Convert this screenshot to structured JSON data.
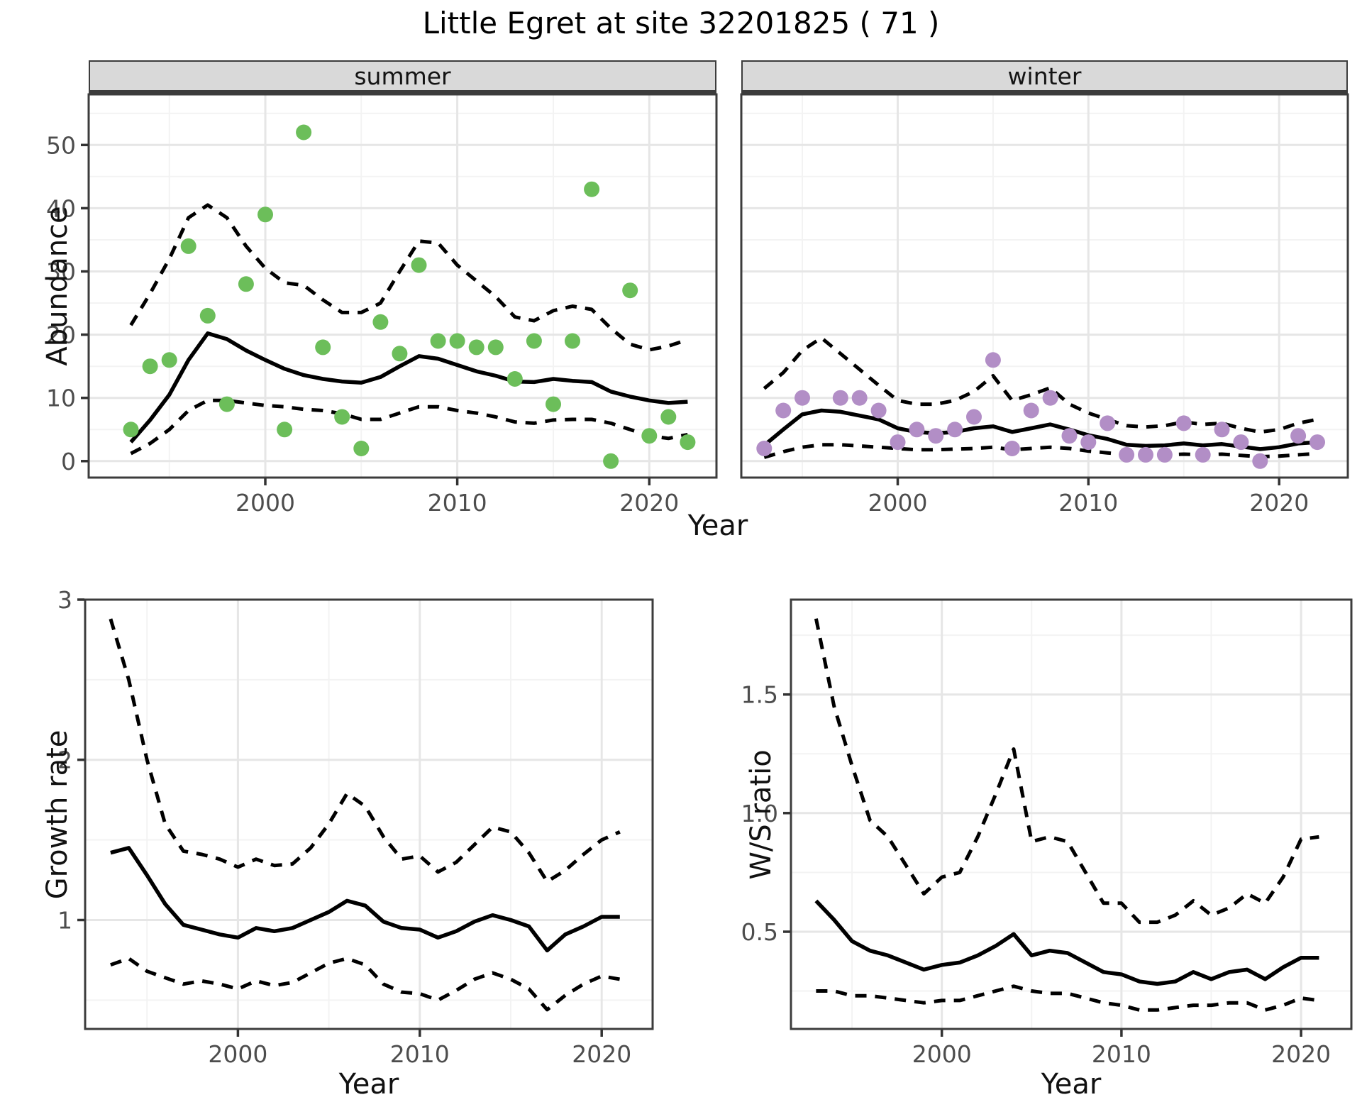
{
  "title": "Little Egret at site 32201825 ( 71 )",
  "labels": {
    "abundance": "Abundance",
    "year": "Year",
    "growth_rate": "Growth rate",
    "ws_ratio": "W/S ratio"
  },
  "facets": {
    "summer": "summer",
    "winter": "winter"
  },
  "colors": {
    "summer_point": "#6cbe5a",
    "winter_point": "#b28ec6",
    "line": "#000000",
    "panel_border": "#3c3c3c",
    "strip_bg": "#d9d9d9",
    "grid_major": "#e6e6e6",
    "grid_minor": "#f3f3f3",
    "tick_text": "#4d4d4d",
    "tick_mark": "#333333"
  },
  "chart_data": [
    {
      "id": "summer",
      "type": "scatter",
      "title": "summer",
      "xlabel": "Year",
      "ylabel": "Abundance",
      "xlim": [
        1990.8,
        2023.5
      ],
      "ylim": [
        -2.6,
        58.0
      ],
      "xticks": [
        2000,
        2010,
        2020
      ],
      "xtick_labels": [
        "2000",
        "2010",
        "2020"
      ],
      "xminor": [
        1995,
        2005,
        2015
      ],
      "yticks": [
        0,
        10,
        20,
        30,
        40,
        50
      ],
      "ytick_labels": [
        "0",
        "10",
        "20",
        "30",
        "40",
        "50"
      ],
      "yminor": [
        5,
        15,
        25,
        35,
        45,
        55
      ],
      "y_labels_visible": true,
      "point_color": "#6cbe5a",
      "points": {
        "years": [
          1993,
          1994,
          1995,
          1996,
          1997,
          1998,
          1999,
          2000,
          2001,
          2002,
          2003,
          2004,
          2005,
          2006,
          2007,
          2008,
          2009,
          2010,
          2011,
          2012,
          2013,
          2014,
          2015,
          2016,
          2017,
          2018,
          2019,
          2020,
          2021,
          2022
        ],
        "values": [
          5,
          15,
          16,
          34,
          23,
          9,
          28,
          39,
          5,
          52,
          18,
          7,
          2,
          22,
          17,
          31,
          19,
          19,
          18,
          18,
          13,
          19,
          9,
          19,
          43,
          0,
          27,
          4,
          7,
          3
        ]
      },
      "mean": {
        "years": [
          1993,
          1994,
          1995,
          1996,
          1997,
          1998,
          1999,
          2000,
          2001,
          2002,
          2003,
          2004,
          2005,
          2006,
          2007,
          2008,
          2009,
          2010,
          2011,
          2012,
          2013,
          2014,
          2015,
          2016,
          2017,
          2018,
          2019,
          2020,
          2021,
          2022
        ],
        "values": [
          3.0,
          6.5,
          10.5,
          16.0,
          20.2,
          19.3,
          17.5,
          16.0,
          14.6,
          13.6,
          13.0,
          12.6,
          12.4,
          13.3,
          15.0,
          16.6,
          16.2,
          15.2,
          14.2,
          13.5,
          12.6,
          12.5,
          13.0,
          12.7,
          12.5,
          11.0,
          10.2,
          9.6,
          9.2,
          9.4
        ]
      },
      "upper": {
        "years": [
          1993,
          1994,
          1995,
          1996,
          1997,
          1998,
          1999,
          2000,
          2001,
          2002,
          2003,
          2004,
          2005,
          2006,
          2007,
          2008,
          2009,
          2010,
          2011,
          2012,
          2013,
          2014,
          2015,
          2016,
          2017,
          2018,
          2019,
          2020,
          2021,
          2022
        ],
        "values": [
          21.5,
          26.5,
          32.0,
          38.5,
          40.5,
          38.5,
          34.0,
          30.5,
          28.2,
          27.8,
          25.5,
          23.5,
          23.5,
          25.0,
          30.0,
          34.8,
          34.5,
          31.0,
          28.5,
          26.0,
          22.8,
          22.2,
          23.8,
          24.5,
          24.0,
          21.0,
          18.5,
          17.6,
          18.2,
          19.2
        ]
      },
      "lower": {
        "years": [
          1993,
          1994,
          1995,
          1996,
          1997,
          1998,
          1999,
          2000,
          2001,
          2002,
          2003,
          2004,
          2005,
          2006,
          2007,
          2008,
          2009,
          2010,
          2011,
          2012,
          2013,
          2014,
          2015,
          2016,
          2017,
          2018,
          2019,
          2020,
          2021,
          2022
        ],
        "values": [
          1.2,
          2.8,
          5.0,
          8.0,
          9.6,
          9.6,
          9.2,
          8.8,
          8.6,
          8.2,
          8.0,
          7.5,
          6.6,
          6.6,
          7.6,
          8.6,
          8.6,
          8.0,
          7.6,
          7.0,
          6.2,
          6.0,
          6.5,
          6.6,
          6.6,
          6.0,
          5.0,
          4.0,
          3.6,
          4.2
        ]
      }
    },
    {
      "id": "winter",
      "type": "scatter",
      "title": "winter",
      "xlabel": "Year",
      "ylabel": "Abundance",
      "xlim": [
        1991.8,
        2023.6
      ],
      "ylim": [
        -2.6,
        58.0
      ],
      "xticks": [
        2000,
        2010,
        2020
      ],
      "xtick_labels": [
        "2000",
        "2010",
        "2020"
      ],
      "xminor": [
        1995,
        2005,
        2015
      ],
      "yticks": [
        0,
        10,
        20,
        30,
        40,
        50
      ],
      "ytick_labels": [
        "0",
        "10",
        "20",
        "30",
        "40",
        "50"
      ],
      "yminor": [
        5,
        15,
        25,
        35,
        45,
        55
      ],
      "y_labels_visible": false,
      "point_color": "#b28ec6",
      "points": {
        "years": [
          1993,
          1994,
          1995,
          1997,
          1998,
          1999,
          2000,
          2001,
          2002,
          2003,
          2004,
          2005,
          2006,
          2007,
          2008,
          2009,
          2010,
          2011,
          2012,
          2013,
          2014,
          2015,
          2016,
          2017,
          2018,
          2019,
          2021,
          2022
        ],
        "values": [
          2,
          8,
          10,
          10,
          10,
          8,
          3,
          5,
          4,
          5,
          7,
          16,
          2,
          8,
          10,
          4,
          3,
          6,
          1,
          1,
          1,
          6,
          1,
          5,
          3,
          0,
          4,
          3
        ]
      },
      "mean": {
        "years": [
          1993,
          1994,
          1995,
          1996,
          1997,
          1998,
          1999,
          2000,
          2001,
          2002,
          2003,
          2004,
          2005,
          2006,
          2007,
          2008,
          2009,
          2010,
          2011,
          2012,
          2013,
          2014,
          2015,
          2016,
          2017,
          2018,
          2019,
          2020,
          2021,
          2022
        ],
        "values": [
          2.5,
          5.0,
          7.4,
          8.0,
          7.8,
          7.2,
          6.6,
          5.2,
          4.6,
          4.4,
          4.6,
          5.2,
          5.5,
          4.6,
          5.2,
          5.8,
          5.0,
          4.1,
          3.5,
          2.6,
          2.4,
          2.5,
          2.8,
          2.5,
          2.7,
          2.3,
          1.9,
          2.2,
          2.8,
          3.0
        ]
      },
      "upper": {
        "years": [
          1993,
          1994,
          1995,
          1996,
          1997,
          1998,
          1999,
          2000,
          2001,
          2002,
          2003,
          2004,
          2005,
          2006,
          2007,
          2008,
          2009,
          2010,
          2011,
          2012,
          2013,
          2014,
          2015,
          2016,
          2017,
          2018,
          2019,
          2020,
          2021,
          2022
        ],
        "values": [
          11.5,
          14.0,
          17.5,
          19.5,
          17.0,
          14.5,
          12.0,
          9.6,
          9.0,
          9.0,
          9.6,
          11.0,
          13.5,
          9.6,
          10.5,
          11.6,
          9.0,
          7.6,
          6.6,
          5.6,
          5.4,
          5.6,
          6.2,
          5.8,
          6.0,
          5.2,
          4.6,
          5.0,
          6.0,
          6.6
        ]
      },
      "lower": {
        "years": [
          1993,
          1994,
          1995,
          1996,
          1997,
          1998,
          1999,
          2000,
          2001,
          2002,
          2003,
          2004,
          2005,
          2006,
          2007,
          2008,
          2009,
          2010,
          2011,
          2012,
          2013,
          2014,
          2015,
          2016,
          2017,
          2018,
          2019,
          2020,
          2021,
          2022
        ],
        "values": [
          0.6,
          1.5,
          2.2,
          2.6,
          2.6,
          2.4,
          2.2,
          2.0,
          1.8,
          1.8,
          1.9,
          2.0,
          2.2,
          1.8,
          2.0,
          2.2,
          2.0,
          1.6,
          1.3,
          1.0,
          0.9,
          1.0,
          1.1,
          1.0,
          1.1,
          0.9,
          0.7,
          0.8,
          1.0,
          1.2
        ]
      }
    },
    {
      "id": "growth",
      "type": "line",
      "title": "",
      "xlabel": "Year",
      "ylabel": "Growth rate",
      "xlim": [
        1991.6,
        2022.8
      ],
      "ylim": [
        0.32,
        3.0
      ],
      "xticks": [
        2000,
        2010,
        2020
      ],
      "xtick_labels": [
        "2000",
        "2010",
        "2020"
      ],
      "xminor": [
        1995,
        2005,
        2015
      ],
      "yticks": [
        1,
        2,
        3
      ],
      "ytick_labels": [
        "1",
        "2",
        "3"
      ],
      "yminor": [
        0.5,
        1.5,
        2.5
      ],
      "y_labels_visible": true,
      "point_color": null,
      "points": null,
      "mean": {
        "years": [
          1993,
          1994,
          1995,
          1996,
          1997,
          1998,
          1999,
          2000,
          2001,
          2002,
          2003,
          2004,
          2005,
          2006,
          2007,
          2008,
          2009,
          2010,
          2011,
          2012,
          2013,
          2014,
          2015,
          2016,
          2017,
          2018,
          2019,
          2020,
          2021
        ],
        "values": [
          1.42,
          1.45,
          1.28,
          1.1,
          0.97,
          0.94,
          0.91,
          0.89,
          0.95,
          0.93,
          0.95,
          1.0,
          1.05,
          1.12,
          1.09,
          0.99,
          0.95,
          0.94,
          0.89,
          0.93,
          0.99,
          1.03,
          1.0,
          0.96,
          0.81,
          0.91,
          0.96,
          1.02,
          1.02
        ]
      },
      "upper": {
        "years": [
          1993,
          1994,
          1995,
          1996,
          1997,
          1998,
          1999,
          2000,
          2001,
          2002,
          2003,
          2004,
          2005,
          2006,
          2007,
          2008,
          2009,
          2010,
          2011,
          2012,
          2013,
          2014,
          2015,
          2016,
          2017,
          2018,
          2019,
          2020,
          2021
        ],
        "values": [
          2.88,
          2.5,
          2.0,
          1.6,
          1.43,
          1.41,
          1.38,
          1.33,
          1.38,
          1.34,
          1.35,
          1.45,
          1.6,
          1.79,
          1.71,
          1.52,
          1.38,
          1.4,
          1.3,
          1.36,
          1.47,
          1.58,
          1.55,
          1.42,
          1.24,
          1.31,
          1.41,
          1.5,
          1.55
        ]
      },
      "lower": {
        "years": [
          1993,
          1994,
          1995,
          1996,
          1997,
          1998,
          1999,
          2000,
          2001,
          2002,
          2003,
          2004,
          2005,
          2006,
          2007,
          2008,
          2009,
          2010,
          2011,
          2012,
          2013,
          2014,
          2015,
          2016,
          2017,
          2018,
          2019,
          2020,
          2021
        ],
        "values": [
          0.72,
          0.76,
          0.68,
          0.64,
          0.6,
          0.62,
          0.6,
          0.57,
          0.62,
          0.59,
          0.61,
          0.67,
          0.73,
          0.76,
          0.72,
          0.6,
          0.55,
          0.54,
          0.5,
          0.56,
          0.63,
          0.67,
          0.63,
          0.57,
          0.44,
          0.53,
          0.6,
          0.65,
          0.63
        ]
      }
    },
    {
      "id": "ws",
      "type": "line",
      "title": "",
      "xlabel": "Year",
      "ylabel": "W/S ratio",
      "xlim": [
        1991.6,
        2022.8
      ],
      "ylim": [
        0.09,
        1.9
      ],
      "xticks": [
        2000,
        2010,
        2020
      ],
      "xtick_labels": [
        "2000",
        "2010",
        "2020"
      ],
      "xminor": [
        1995,
        2005,
        2015
      ],
      "yticks": [
        0.5,
        1.0,
        1.5
      ],
      "ytick_labels": [
        "0.5",
        "1.0",
        "1.5"
      ],
      "yminor": [
        0.25,
        0.75,
        1.25,
        1.75
      ],
      "y_labels_visible": true,
      "point_color": null,
      "points": null,
      "mean": {
        "years": [
          1993,
          1994,
          1995,
          1996,
          1997,
          1998,
          1999,
          2000,
          2001,
          2002,
          2003,
          2004,
          2005,
          2006,
          2007,
          2008,
          2009,
          2010,
          2011,
          2012,
          2013,
          2014,
          2015,
          2016,
          2017,
          2018,
          2019,
          2020,
          2021
        ],
        "values": [
          0.63,
          0.55,
          0.46,
          0.42,
          0.4,
          0.37,
          0.34,
          0.36,
          0.37,
          0.4,
          0.44,
          0.49,
          0.4,
          0.42,
          0.41,
          0.37,
          0.33,
          0.32,
          0.29,
          0.28,
          0.29,
          0.33,
          0.3,
          0.33,
          0.34,
          0.3,
          0.35,
          0.39,
          0.39
        ]
      },
      "upper": {
        "years": [
          1993,
          1994,
          1995,
          1996,
          1997,
          1998,
          1999,
          2000,
          2001,
          2002,
          2003,
          2004,
          2005,
          2006,
          2007,
          2008,
          2009,
          2010,
          2011,
          2012,
          2013,
          2014,
          2015,
          2016,
          2017,
          2018,
          2019,
          2020,
          2021
        ],
        "values": [
          1.82,
          1.45,
          1.2,
          0.97,
          0.9,
          0.78,
          0.66,
          0.73,
          0.75,
          0.9,
          1.08,
          1.27,
          0.88,
          0.9,
          0.88,
          0.75,
          0.62,
          0.62,
          0.54,
          0.54,
          0.57,
          0.63,
          0.57,
          0.6,
          0.66,
          0.62,
          0.73,
          0.89,
          0.9
        ]
      },
      "lower": {
        "years": [
          1993,
          1994,
          1995,
          1996,
          1997,
          1998,
          1999,
          2000,
          2001,
          2002,
          2003,
          2004,
          2005,
          2006,
          2007,
          2008,
          2009,
          2010,
          2011,
          2012,
          2013,
          2014,
          2015,
          2016,
          2017,
          2018,
          2019,
          2020,
          2021
        ],
        "values": [
          0.25,
          0.25,
          0.23,
          0.23,
          0.22,
          0.21,
          0.2,
          0.21,
          0.21,
          0.23,
          0.25,
          0.27,
          0.25,
          0.24,
          0.24,
          0.22,
          0.2,
          0.19,
          0.17,
          0.17,
          0.18,
          0.19,
          0.19,
          0.2,
          0.2,
          0.17,
          0.19,
          0.22,
          0.21
        ]
      }
    }
  ]
}
